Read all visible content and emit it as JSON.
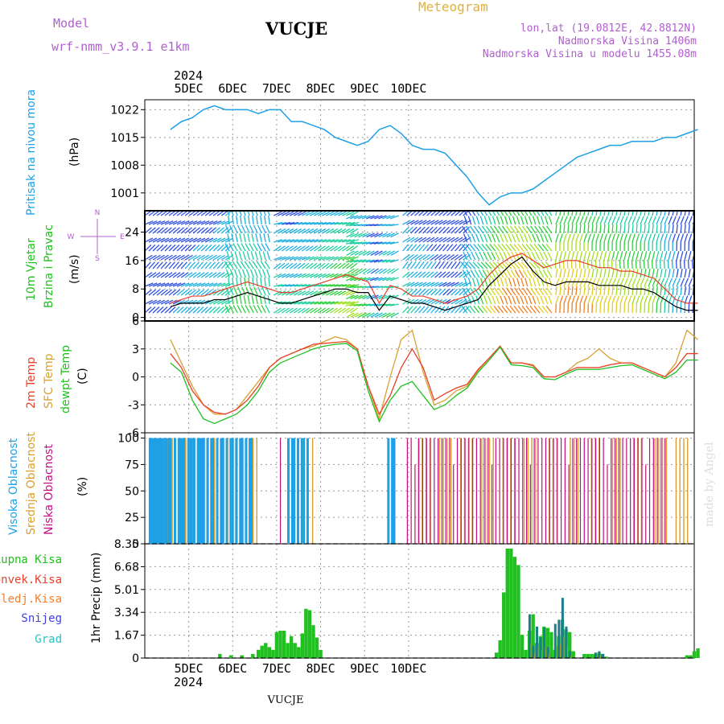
{
  "header": {
    "model_label": "Model",
    "model_name": "wrf-nmm_v3.9.1 e1km",
    "station": "VUCJE",
    "meteogram": "Meteogram",
    "lonlat": "lon,lat (19.0812E, 42.8812N)",
    "altitude": "Nadmorska Visina 1406m",
    "model_altitude": "Nadmorska Visina u modelu 1455.08m",
    "year_top": "2024",
    "year_bottom": "2024",
    "footer_station": "VUCJE",
    "credit": "made by Angel"
  },
  "day_labels": [
    "5DEC",
    "6DEC",
    "7DEC",
    "8DEC",
    "9DEC",
    "10DEC"
  ],
  "compass": {
    "n": "N",
    "e": "E",
    "s": "S",
    "w": "W"
  },
  "colors": {
    "pressure": "#1ea0e6",
    "wind_speed": "#000000",
    "wind_gust": "#e8402a",
    "temp2m": "#e8402a",
    "sfc_temp": "#d8a030",
    "dewpoint": "#20c020",
    "high_cloud": "#1ea0e6",
    "mid_cloud": "#d8a030",
    "low_cloud": "#c01080",
    "precip_total": "#20c020",
    "precip_conv": "#e8402a",
    "precip_frozen": "#f08030",
    "snow": "#4040e0",
    "hail": "#30c0c0",
    "label_purple": "#b060d0",
    "label_gold": "#e0b040"
  },
  "chart_data": [
    {
      "type": "line",
      "name": "pressure",
      "ylabel": [
        "Pritisak na nivou mora",
        "(hPa)"
      ],
      "yticks": [
        1001,
        1008,
        1015,
        1022
      ],
      "ylim": [
        996.5,
        1024.5
      ],
      "x_hours": [
        0,
        6,
        12,
        18,
        24,
        30,
        36,
        42,
        48,
        54,
        60,
        66,
        72,
        78,
        84,
        90,
        96,
        102,
        108,
        114,
        120,
        126,
        132,
        138,
        144,
        150,
        156,
        162,
        168,
        174,
        180,
        186,
        192,
        198,
        204,
        210,
        216,
        222,
        228,
        234,
        240,
        246,
        252,
        258,
        264,
        270,
        276,
        282,
        288
      ],
      "series": [
        {
          "values": [
            1017,
            1019,
            1020,
            1022,
            1023,
            1022,
            1022,
            1022,
            1021,
            1022,
            1022,
            1019,
            1019,
            1018,
            1017,
            1015,
            1014,
            1013,
            1014,
            1017,
            1018,
            1016,
            1013,
            1012,
            1012,
            1011,
            1008,
            1005,
            1001,
            998,
            1000,
            1001,
            1001,
            1002,
            1004,
            1006,
            1008,
            1010,
            1011,
            1012,
            1013,
            1013,
            1014,
            1014,
            1014,
            1015,
            1015,
            1016,
            1017
          ]
        }
      ]
    },
    {
      "type": "line",
      "name": "wind",
      "ylabel": [
        "10m Vjetar",
        "Brzina i Pravac",
        "(m/s)"
      ],
      "yticks": [
        0,
        8,
        16,
        24
      ],
      "ylim": [
        -1,
        30
      ],
      "x_hours": [
        0,
        6,
        12,
        18,
        24,
        30,
        36,
        42,
        48,
        54,
        60,
        66,
        72,
        78,
        84,
        90,
        96,
        102,
        108,
        114,
        120,
        126,
        132,
        138,
        144,
        150,
        156,
        162,
        168,
        174,
        180,
        186,
        192,
        198,
        204,
        210,
        216,
        222,
        228,
        234,
        240,
        246,
        252,
        258,
        264,
        270,
        276,
        282,
        288
      ],
      "series": [
        {
          "values": [
            3,
            4,
            4,
            4,
            5,
            5,
            6,
            7,
            6,
            5,
            4,
            4,
            5,
            6,
            7,
            8,
            8,
            7,
            7,
            2,
            6,
            5,
            4,
            4,
            3,
            2,
            3,
            4,
            5,
            9,
            12,
            15,
            17,
            13,
            10,
            9,
            10,
            10,
            10,
            9,
            9,
            9,
            8,
            8,
            7,
            5,
            3,
            2,
            2
          ]
        },
        {
          "values": [
            4,
            5,
            6,
            6,
            7,
            8,
            9,
            10,
            9,
            8,
            7,
            7,
            8,
            9,
            10,
            11,
            12,
            11,
            10,
            4,
            9,
            8,
            6,
            6,
            5,
            4,
            5,
            6,
            8,
            12,
            15,
            17,
            18,
            16,
            14,
            15,
            16,
            16,
            15,
            14,
            14,
            13,
            13,
            12,
            11,
            8,
            5,
            4,
            4
          ]
        }
      ]
    },
    {
      "type": "line",
      "name": "temperature",
      "ylabel": [
        "2m Temp",
        "SFC Temp",
        "dewpt Temp",
        "(C)"
      ],
      "yticks": [
        -6,
        -3,
        0,
        3,
        6
      ],
      "ylim": [
        -6,
        6
      ],
      "x_hours": [
        0,
        6,
        12,
        18,
        24,
        30,
        36,
        42,
        48,
        54,
        60,
        66,
        72,
        78,
        84,
        90,
        96,
        102,
        108,
        114,
        120,
        126,
        132,
        138,
        144,
        150,
        156,
        162,
        168,
        174,
        180,
        186,
        192,
        198,
        204,
        210,
        216,
        222,
        228,
        234,
        240,
        246,
        252,
        258,
        264,
        270,
        276,
        282,
        288
      ],
      "series": [
        {
          "values": [
            2.5,
            1,
            -1.5,
            -3,
            -3.8,
            -4,
            -3.5,
            -2.5,
            -1,
            1,
            2,
            2.5,
            3,
            3.5,
            3.6,
            3.7,
            3.8,
            3,
            -1,
            -4,
            -2,
            1,
            3,
            1,
            -2.5,
            -1.8,
            -1.2,
            -0.8,
            0.8,
            2,
            3.3,
            1.5,
            1.5,
            1.2,
            0,
            0,
            0.5,
            1,
            1,
            1,
            1.3,
            1.5,
            1.5,
            1,
            0.5,
            0,
            1,
            2.5,
            2.5
          ]
        },
        {
          "values": [
            4,
            1.5,
            -1,
            -3,
            -4,
            -4,
            -3.5,
            -2,
            -0.5,
            1,
            2,
            2.5,
            3,
            3.3,
            3.8,
            4.3,
            4,
            3,
            -1,
            -4.5,
            0,
            4,
            5,
            0.5,
            -3,
            -2.5,
            -1.5,
            -1,
            0.7,
            2,
            3.3,
            1.5,
            1.5,
            1.3,
            0,
            0,
            0.5,
            1.5,
            2,
            3,
            2,
            1.5,
            1.5,
            1,
            0.5,
            0,
            1.5,
            5,
            4
          ]
        },
        {
          "values": [
            1.5,
            0.5,
            -2.5,
            -4.5,
            -5,
            -4.5,
            -4,
            -3,
            -1.5,
            0.5,
            1.5,
            2,
            2.5,
            3,
            3.3,
            3.5,
            3.6,
            2.8,
            -1.5,
            -4.8,
            -2.5,
            -1,
            -0.5,
            -2,
            -3.5,
            -3,
            -2,
            -1.2,
            0.5,
            1.8,
            3.2,
            1.3,
            1.2,
            1,
            -0.2,
            -0.3,
            0.3,
            0.8,
            0.8,
            0.8,
            1,
            1.2,
            1.3,
            0.8,
            0.3,
            -0.2,
            0.5,
            1.8,
            1.8
          ]
        }
      ]
    },
    {
      "type": "bar",
      "name": "clouds",
      "ylabel": [
        "Visoka Oblacnost",
        "Srednja Oblacnost",
        "Niska Oblacnost",
        "(%)"
      ],
      "yticks": [
        0,
        25,
        50,
        75,
        100
      ],
      "ylim": [
        0,
        105
      ]
    },
    {
      "type": "bar",
      "name": "precip",
      "ylabel": [
        "1hr Precip (mm)"
      ],
      "legend": [
        "Ukupna Kisa",
        "Konvek.Kisa",
        "Zaledj.Kisa",
        "Snijeg",
        "Grad"
      ],
      "yticks": [
        0,
        1.67,
        3.34,
        5.01,
        6.68,
        8.35
      ],
      "ytick_labels": [
        "0",
        "1.67",
        "3.34",
        "5.01",
        "6.68",
        "8.35"
      ],
      "ylim": [
        0,
        8.35
      ],
      "x_hours": [
        27,
        33,
        39,
        45,
        48,
        50,
        52,
        54,
        56,
        58,
        60,
        62,
        64,
        66,
        68,
        70,
        72,
        74,
        76,
        78,
        80,
        82,
        84,
        86,
        88,
        90,
        92,
        94,
        96,
        98,
        100,
        102,
        104,
        106,
        108,
        110,
        112,
        114,
        116,
        118,
        120,
        122,
        124,
        126,
        128,
        130,
        132,
        134,
        136,
        138,
        140,
        142,
        144,
        146,
        148,
        150,
        152,
        154,
        156,
        158,
        160,
        162,
        164,
        166,
        168,
        170,
        172,
        174,
        176,
        178,
        180,
        182,
        184,
        186,
        188,
        190,
        192,
        194,
        196,
        198,
        200,
        202,
        204,
        206,
        208,
        210,
        212,
        214,
        216,
        218,
        220,
        222,
        224,
        226,
        228,
        230,
        232,
        234,
        236,
        238,
        240,
        242,
        244,
        246,
        248,
        250,
        252,
        254,
        256,
        258,
        260,
        262,
        264,
        266,
        268,
        270,
        272,
        274,
        276,
        278,
        280,
        282,
        284,
        286,
        288
      ],
      "series": [
        {
          "name": "Ukupna Kisa",
          "values": [
            0.3,
            0.2,
            0.2,
            0.3,
            0.6,
            0.9,
            1.1,
            0.8,
            0.6,
            1.9,
            2,
            2,
            1.1,
            1.6,
            1.1,
            0.8,
            1.8,
            3.6,
            3.5,
            2.4,
            1.5,
            0.6,
            0,
            0,
            0,
            0,
            0,
            0,
            0,
            0,
            0,
            0,
            0,
            0,
            0,
            0,
            0,
            0,
            0,
            0,
            0,
            0,
            0,
            0,
            0,
            0,
            0,
            0,
            0,
            0,
            0,
            0,
            0,
            0,
            0,
            0,
            0,
            0,
            0,
            0,
            0,
            0,
            0,
            0,
            0,
            0,
            0,
            0,
            0,
            0.4,
            1.3,
            4.8,
            8,
            8,
            7.4,
            6.8,
            1.7,
            0.6,
            2,
            3.2,
            1.1,
            1.6,
            2.3,
            2.2,
            1.9,
            0.6,
            1.6,
            2.8,
            2.1,
            1.9,
            0.5,
            0,
            0,
            0.3,
            0.3,
            0.3,
            0.3,
            0.4,
            0.3,
            0.1,
            0,
            0,
            0,
            0,
            0,
            0,
            0,
            0,
            0,
            0,
            0,
            0,
            0,
            0,
            0,
            0,
            0,
            0,
            0,
            0,
            0,
            0.2,
            0.2,
            0.5,
            0.7
          ]
        },
        {
          "name": "Snijeg",
          "values": [
            0,
            0,
            0,
            0,
            0,
            0,
            0,
            0,
            0,
            0,
            0,
            0,
            0,
            0,
            0,
            0,
            0,
            0,
            0,
            0,
            0,
            0,
            0,
            0,
            0,
            0,
            0,
            0,
            0,
            0,
            0,
            0,
            0,
            0,
            0,
            0,
            0,
            0,
            0,
            0,
            0,
            0,
            0,
            0,
            0,
            0,
            0,
            0,
            0,
            0,
            0,
            0,
            0,
            0,
            0,
            0,
            0,
            0,
            0,
            0,
            0,
            0,
            0,
            0,
            0,
            0,
            0,
            0,
            0,
            0,
            0,
            0,
            0,
            0,
            0,
            0,
            0,
            0,
            3.2,
            0.9,
            2.3,
            1.5,
            2.2,
            0.8,
            0,
            2.5,
            2.8,
            4.4,
            2.3,
            0.5,
            0,
            0,
            0,
            0,
            0,
            0,
            0.4,
            0.5,
            0.3,
            0,
            0,
            0,
            0,
            0,
            0,
            0,
            0,
            0,
            0,
            0,
            0,
            0,
            0,
            0,
            0,
            0,
            0,
            0,
            0,
            0,
            0,
            0,
            0,
            0,
            0
          ]
        }
      ]
    }
  ]
}
